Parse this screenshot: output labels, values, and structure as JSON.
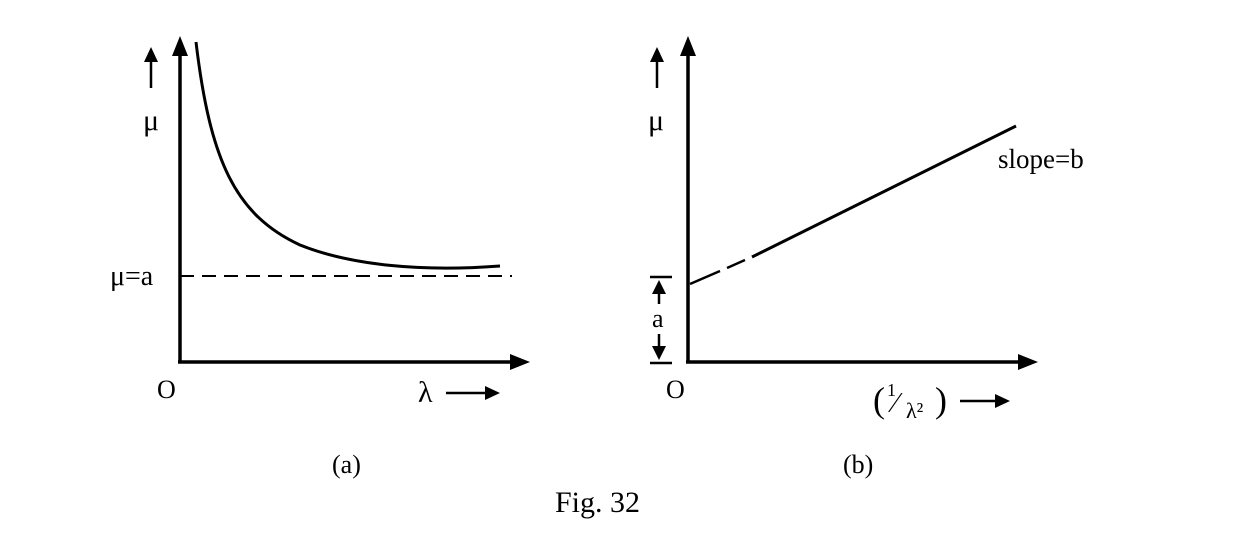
{
  "figure": {
    "caption": "Fig. 32",
    "panel_a": {
      "label": "(a)",
      "origin": "O",
      "y_axis_symbol": "μ",
      "x_axis_symbol": "λ",
      "asymptote_label": "μ=a"
    },
    "panel_b": {
      "label": "(b)",
      "origin": "O",
      "y_axis_symbol": "μ",
      "x_axis_paren_open": "(",
      "x_axis_num": "1",
      "x_axis_slash": "⁄",
      "x_axis_den": "λ²",
      "x_axis_paren_close": ")",
      "slope_label": "slope=b",
      "intercept_label": "a"
    }
  }
}
